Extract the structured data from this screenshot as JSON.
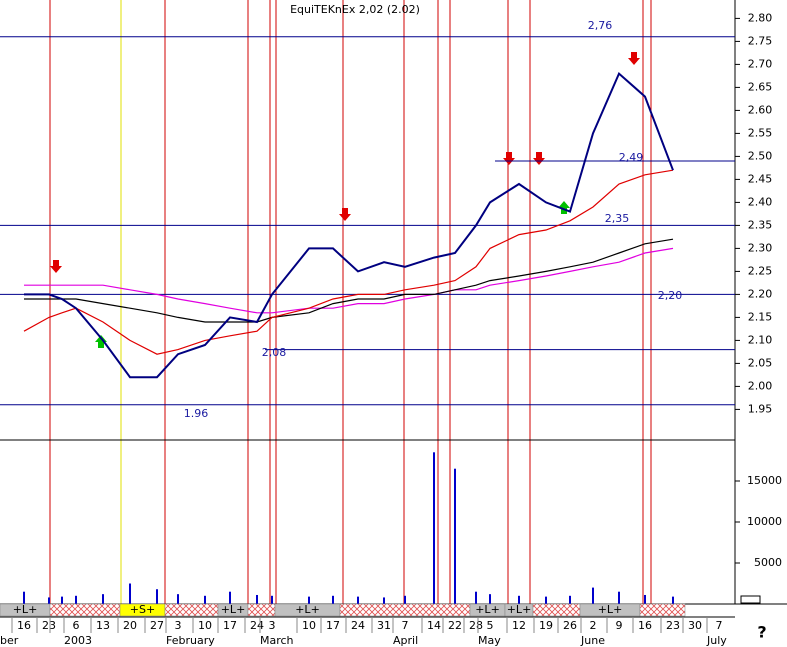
{
  "chart_data": {
    "type": "line",
    "title": "EquiTEKnEx 2,02 (2.02)",
    "categories": [
      "16",
      "23",
      null,
      "6",
      "13",
      "20",
      "27",
      "3",
      "10",
      "17",
      "24",
      "3",
      "10",
      "17",
      "24",
      "31",
      "7",
      "14",
      "22",
      "28",
      "5",
      "12",
      "19",
      "26",
      "2",
      "9",
      "16",
      "23",
      "30",
      "7"
    ],
    "group_labels": [
      "ber",
      null,
      null,
      "2003",
      null,
      null,
      null,
      "February",
      null,
      null,
      null,
      "March",
      null,
      null,
      null,
      null,
      "April",
      null,
      null,
      null,
      "May",
      null,
      null,
      null,
      "June",
      null,
      null,
      null,
      null,
      "July"
    ],
    "series": [
      {
        "color": "#000080",
        "values": [
          2.2,
          2.2,
          2.19,
          2.17,
          2.1,
          2.02,
          2.02,
          2.07,
          2.09,
          2.15,
          2.14,
          2.2,
          2.3,
          2.3,
          2.25,
          2.27,
          2.26,
          2.28,
          2.29,
          2.35,
          2.4,
          2.44,
          2.4,
          2.38,
          2.55,
          2.68,
          2.63,
          2.47,
          null,
          null
        ]
      },
      {
        "color": "#e00000",
        "values": [
          2.12,
          2.15,
          2.16,
          2.17,
          2.14,
          2.1,
          2.07,
          2.08,
          2.1,
          2.11,
          2.12,
          2.15,
          2.17,
          2.19,
          2.2,
          2.2,
          2.21,
          2.22,
          2.23,
          2.26,
          2.3,
          2.33,
          2.34,
          2.36,
          2.39,
          2.44,
          2.46,
          2.47,
          null,
          null
        ]
      },
      {
        "color": "#000000",
        "values": [
          2.19,
          2.19,
          2.19,
          2.19,
          2.18,
          2.17,
          2.16,
          2.15,
          2.14,
          2.14,
          2.14,
          2.15,
          2.16,
          2.18,
          2.19,
          2.19,
          2.2,
          2.2,
          2.21,
          2.22,
          2.23,
          2.24,
          2.25,
          2.26,
          2.27,
          2.29,
          2.31,
          2.32,
          null,
          null
        ]
      },
      {
        "color": "#e000e0",
        "values": [
          2.22,
          2.22,
          2.22,
          2.22,
          2.22,
          2.21,
          2.2,
          2.19,
          2.18,
          2.17,
          2.16,
          2.16,
          2.17,
          2.17,
          2.18,
          2.18,
          2.19,
          2.2,
          2.21,
          2.21,
          2.22,
          2.23,
          2.24,
          2.25,
          2.26,
          2.27,
          2.29,
          2.3,
          null,
          null
        ]
      }
    ],
    "ylim": [
      1.89,
      2.84
    ],
    "yticks": [
      1.95,
      {
        "value": 2.0,
        "label": "2.00"
      },
      2.05,
      {
        "value": 2.1,
        "label": "2.10"
      },
      2.15,
      {
        "value": 2.2,
        "label": "2.20"
      },
      2.25,
      {
        "value": 2.3,
        "label": "2.30"
      },
      2.35,
      {
        "value": 2.4,
        "label": "2.40"
      },
      2.45,
      {
        "value": 2.5,
        "label": "2.50"
      },
      2.55,
      {
        "value": 2.6,
        "label": "2.60"
      },
      2.65,
      {
        "value": 2.7,
        "label": "2.70"
      },
      2.75,
      {
        "value": 2.8,
        "label": "2.80"
      }
    ],
    "grid": false,
    "levels": [
      {
        "value": 2.76,
        "label": "2,76"
      },
      {
        "value": 2.49,
        "label": "2,49"
      },
      {
        "value": 2.35,
        "label": "2,35"
      },
      {
        "value": 2.2,
        "label": "2,20"
      },
      {
        "value": 2.08,
        "label": "2,08"
      },
      {
        "value": 1.96,
        "label": "1.96"
      }
    ],
    "volume": {
      "color": "#0000cc",
      "values": [
        1500,
        800,
        900,
        1000,
        1200,
        2500,
        1800,
        1200,
        1000,
        1500,
        1100,
        1000,
        900,
        1000,
        900,
        800,
        1000,
        18500,
        16500,
        1500,
        1200,
        1000,
        900,
        1000,
        2000,
        1500,
        1100,
        900,
        null,
        null
      ],
      "ylim": [
        0,
        20000
      ],
      "yticks": [
        5000,
        10000,
        15000
      ]
    },
    "signals": [
      "+L+",
      "+S+",
      "+L+",
      "+L+",
      "+L+",
      "+L+",
      "+L+"
    ],
    "help": "?"
  }
}
